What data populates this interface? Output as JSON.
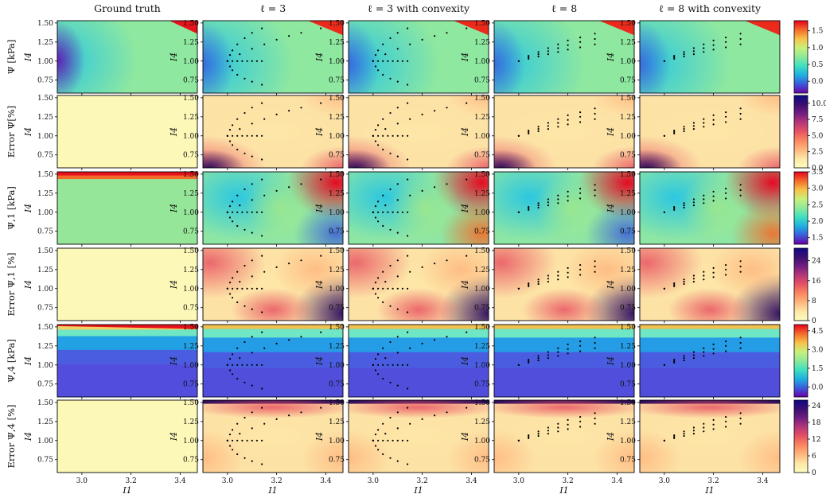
{
  "columns": [
    "Ground truth",
    "ℓ = 3",
    "ℓ = 3 with convexity",
    "ℓ = 8",
    "ℓ = 8 with convexity"
  ],
  "rows": [
    {
      "label": "Ψ [kPa]",
      "kind": "value",
      "cbar_ticks": [
        "0.0",
        "0.5",
        "1.0",
        "1.5"
      ],
      "cbar_range": [
        -0.35,
        1.8
      ]
    },
    {
      "label": "Error Ψ[%]",
      "kind": "error",
      "cbar_ticks": [
        "0.0",
        "2.5",
        "5.0",
        "7.5",
        "10.0"
      ],
      "cbar_range": [
        0,
        11.2
      ]
    },
    {
      "label": "Ψ,1 [kPa]",
      "kind": "value",
      "cbar_ticks": [
        "1.5",
        "2.0",
        "2.5",
        "3.0",
        "3.5"
      ],
      "cbar_range": [
        1.3,
        3.5
      ]
    },
    {
      "label": "Error Ψ,1 [%]",
      "kind": "error",
      "cbar_ticks": [
        "0",
        "8",
        "16",
        "24"
      ],
      "cbar_range": [
        0,
        29
      ]
    },
    {
      "label": "Ψ,4 [kPa]",
      "kind": "value",
      "cbar_ticks": [
        "0.0",
        "1.5",
        "3.0",
        "4.5"
      ],
      "cbar_range": [
        -0.8,
        5.0
      ]
    },
    {
      "label": "Error Ψ,4 [%]",
      "kind": "error",
      "cbar_ticks": [
        "0",
        "6",
        "12",
        "18",
        "24"
      ],
      "cbar_range": [
        0,
        26
      ]
    }
  ],
  "x_axis": {
    "label": "I1",
    "ticks": [
      "3.0",
      "3.2",
      "3.4"
    ],
    "range": [
      2.9,
      3.47
    ]
  },
  "y_axis": {
    "label": "I4",
    "ticks": [
      "0.75",
      "1.00",
      "1.25",
      "1.50"
    ],
    "range": [
      0.58,
      1.53
    ]
  },
  "colormaps": {
    "value": [
      "#6a00a8",
      "#3b5bdb",
      "#1fb0e0",
      "#3fe0c0",
      "#8ee89a",
      "#c9f07a",
      "#f6c24a",
      "#f46a2a",
      "#e8001c"
    ],
    "error": [
      "#fcfdbf",
      "#fde7a7",
      "#feb77e",
      "#fb8861",
      "#e85362",
      "#b73779",
      "#721f81",
      "#3b0f70",
      "#0d0887"
    ]
  },
  "chart_data": [
    {
      "type": "heatmap",
      "title": "",
      "xlabel": "I1",
      "ylabel": "I4",
      "xlim": [
        2.9,
        3.47
      ],
      "ylim": [
        0.58,
        1.53
      ],
      "grid": false,
      "series": [
        {
          "name": "ℓ = 3 training points",
          "x": [
            3.0,
            3.02,
            3.04,
            3.06,
            3.08,
            3.1,
            3.12,
            3.14,
            3.0,
            3.01,
            3.02,
            3.04,
            3.07,
            3.1,
            3.14,
            3.0,
            3.01,
            3.02,
            3.04,
            3.07,
            3.1,
            3.14,
            3.0,
            3.05,
            3.1,
            3.15,
            3.2,
            3.25,
            3.3,
            3.38
          ],
          "y": [
            1.0,
            1.0,
            1.0,
            1.0,
            1.0,
            1.0,
            1.0,
            1.0,
            1.0,
            1.08,
            1.14,
            1.22,
            1.3,
            1.37,
            1.43,
            1.0,
            0.93,
            0.88,
            0.82,
            0.77,
            0.73,
            0.69,
            1.0,
            1.09,
            1.16,
            1.22,
            1.28,
            1.33,
            1.37,
            1.43
          ]
        },
        {
          "name": "ℓ = 8 training points",
          "x": [
            3.0,
            3.04,
            3.08,
            3.12,
            3.16,
            3.2,
            3.25,
            3.31,
            3.0,
            3.04,
            3.08,
            3.12,
            3.16,
            3.2,
            3.25,
            3.31,
            3.0,
            3.04,
            3.08,
            3.12,
            3.16,
            3.2,
            3.25,
            3.31
          ],
          "y": [
            1.0,
            1.05,
            1.09,
            1.13,
            1.17,
            1.21,
            1.25,
            1.29,
            1.0,
            1.07,
            1.12,
            1.17,
            1.22,
            1.27,
            1.31,
            1.36,
            1.0,
            1.03,
            1.06,
            1.09,
            1.12,
            1.15,
            1.18,
            1.22
          ]
        }
      ]
    }
  ]
}
